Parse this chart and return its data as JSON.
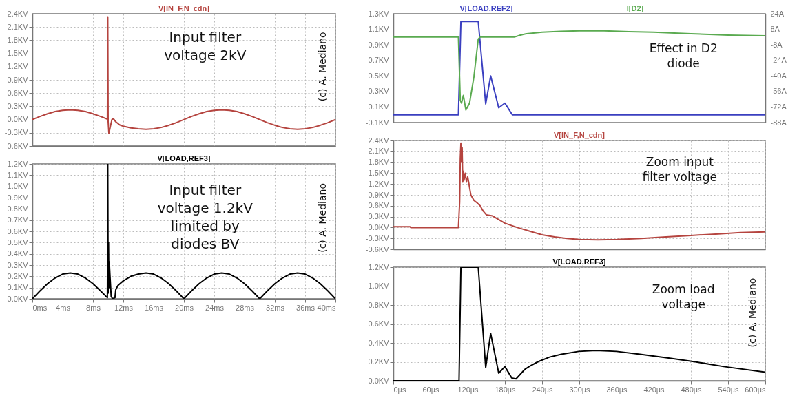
{
  "chart_data": [
    {
      "type": "line",
      "annotations": [
        "Input filter voltage 2kV",
        "(c) A. Mediano"
      ],
      "grid": true,
      "tick_labels": "y",
      "xlim": [
        0,
        40
      ],
      "xticks": [
        0,
        4,
        8,
        12,
        16,
        20,
        24,
        28,
        32,
        36,
        40
      ],
      "ylim": [
        -0.6,
        2.4
      ],
      "yticks": [
        {
          "value": -0.6,
          "label": "-0.6KV"
        },
        {
          "value": -0.3,
          "label": "-0.3KV"
        },
        {
          "value": 0,
          "label": "0.0KV"
        },
        {
          "value": 0.3,
          "label": "0.3KV"
        },
        {
          "value": 0.6,
          "label": "0.6KV"
        },
        {
          "value": 0.9,
          "label": "0.9KV"
        },
        {
          "value": 1.2,
          "label": "1.2KV"
        },
        {
          "value": 1.5,
          "label": "1.5KV"
        },
        {
          "value": 1.8,
          "label": "1.8KV"
        },
        {
          "value": 2.1,
          "label": "2.1KV"
        },
        {
          "value": 2.4,
          "label": "2.4KV"
        }
      ],
      "series": [
        {
          "name": "V[IN_F,N_cdn]",
          "color": "#b5443f",
          "x": [
            0,
            1,
            2,
            3,
            4,
            5,
            6,
            7,
            8,
            9,
            9.9,
            9.95,
            10,
            10.1,
            10.3,
            10.5,
            10.7,
            11,
            11.5,
            12,
            13,
            14,
            15,
            16,
            17,
            18,
            19,
            20,
            21,
            22,
            23,
            24,
            25,
            26,
            27,
            28,
            29,
            30,
            31,
            32,
            33,
            34,
            35,
            36,
            37,
            38,
            39,
            40
          ],
          "values": [
            0,
            0.07,
            0.13,
            0.18,
            0.21,
            0.22,
            0.21,
            0.18,
            0.13,
            0.07,
            0.01,
            2.33,
            -0.05,
            -0.32,
            -0.15,
            0,
            0.02,
            -0.05,
            -0.12,
            -0.15,
            -0.19,
            -0.21,
            -0.22,
            -0.21,
            -0.18,
            -0.13,
            -0.07,
            0,
            0.07,
            0.13,
            0.18,
            0.21,
            0.22,
            0.21,
            0.18,
            0.13,
            0.07,
            0,
            -0.07,
            -0.13,
            -0.18,
            -0.21,
            -0.22,
            -0.21,
            -0.18,
            -0.13,
            -0.07,
            0
          ]
        }
      ]
    },
    {
      "type": "line",
      "annotations": [
        "Input filter voltage 1.2kV limited by diodes BV",
        "(c) A. Mediano"
      ],
      "grid": true,
      "xlim": [
        0,
        40
      ],
      "xticks": [
        {
          "value": 0,
          "label": "0ms"
        },
        {
          "value": 4,
          "label": "4ms"
        },
        {
          "value": 8,
          "label": "8ms"
        },
        {
          "value": 12,
          "label": "12ms"
        },
        {
          "value": 16,
          "label": "16ms"
        },
        {
          "value": 20,
          "label": "20ms"
        },
        {
          "value": 24,
          "label": "24ms"
        },
        {
          "value": 28,
          "label": "28ms"
        },
        {
          "value": 32,
          "label": "32ms"
        },
        {
          "value": 36,
          "label": "36ms"
        },
        {
          "value": 40,
          "label": "40ms"
        }
      ],
      "ylim": [
        0,
        1.2
      ],
      "yticks": [
        {
          "value": 0,
          "label": "0.0KV"
        },
        {
          "value": 0.1,
          "label": "0.1KV"
        },
        {
          "value": 0.2,
          "label": "0.2KV"
        },
        {
          "value": 0.3,
          "label": "0.3KV"
        },
        {
          "value": 0.4,
          "label": "0.4KV"
        },
        {
          "value": 0.5,
          "label": "0.5KV"
        },
        {
          "value": 0.6,
          "label": "0.6KV"
        },
        {
          "value": 0.7,
          "label": "0.7KV"
        },
        {
          "value": 0.8,
          "label": "0.8KV"
        },
        {
          "value": 0.9,
          "label": "0.9KV"
        },
        {
          "value": 1,
          "label": "1.0KV"
        },
        {
          "value": 1.1,
          "label": "1.1KV"
        },
        {
          "value": 1.2,
          "label": "1.2KV"
        }
      ],
      "series": [
        {
          "name": "V[LOAD,REF3]",
          "color": "#000000",
          "x": [
            0,
            1,
            2,
            3,
            4,
            5,
            6,
            7,
            8,
            9,
            9.9,
            9.95,
            10,
            10.05,
            10.1,
            10.15,
            10.25,
            10.4,
            10.6,
            10.9,
            11,
            11.3,
            12,
            13,
            14,
            15,
            16,
            17,
            18,
            19,
            20,
            21,
            22,
            23,
            24,
            25,
            26,
            27,
            28,
            29,
            30,
            31,
            32,
            33,
            34,
            35,
            36,
            37,
            38,
            39,
            40
          ],
          "values": [
            0,
            0.07,
            0.135,
            0.185,
            0.22,
            0.23,
            0.22,
            0.185,
            0.135,
            0.07,
            0.01,
            1.2,
            0.05,
            0.5,
            0.1,
            0.33,
            0.2,
            0.02,
            0,
            0.01,
            0.08,
            0.12,
            0.16,
            0.2,
            0.22,
            0.23,
            0.22,
            0.185,
            0.135,
            0.07,
            0,
            0.07,
            0.135,
            0.185,
            0.22,
            0.23,
            0.22,
            0.185,
            0.135,
            0.07,
            0,
            0.07,
            0.135,
            0.185,
            0.22,
            0.23,
            0.22,
            0.185,
            0.135,
            0.07,
            0
          ]
        }
      ]
    },
    {
      "type": "line",
      "annotations": [
        "Effect in D2 diode"
      ],
      "grid": true,
      "tick_labels": "y",
      "xlim": [
        0,
        600
      ],
      "xticks": [
        0,
        60,
        120,
        180,
        240,
        300,
        360,
        420,
        480,
        540,
        600
      ],
      "ylim": [
        -0.1,
        1.3
      ],
      "yticks": [
        {
          "value": -0.1,
          "label": "-0.1KV"
        },
        {
          "value": 0.1,
          "label": "0.1KV"
        },
        {
          "value": 0.3,
          "label": "0.3KV"
        },
        {
          "value": 0.5,
          "label": "0.5KV"
        },
        {
          "value": 0.7,
          "label": "0.7KV"
        },
        {
          "value": 0.9,
          "label": "0.9KV"
        },
        {
          "value": 1.1,
          "label": "1.1KV"
        },
        {
          "value": 1.3,
          "label": "1.3KV"
        }
      ],
      "y2lim": [
        -88,
        24
      ],
      "y2ticks": [
        {
          "value": -88,
          "label": "-88A"
        },
        {
          "value": -72,
          "label": "-72A"
        },
        {
          "value": -56,
          "label": "-56A"
        },
        {
          "value": -40,
          "label": "-40A"
        },
        {
          "value": -24,
          "label": "-24A"
        },
        {
          "value": -8,
          "label": "-8A"
        },
        {
          "value": 8,
          "label": "8A"
        },
        {
          "value": 24,
          "label": "24A"
        }
      ],
      "series": [
        {
          "name": "V[LOAD,REF2]",
          "color": "#3a3fc0",
          "x": [
            0,
            105,
            109,
            137,
            149,
            157,
            170,
            180,
            192,
            600
          ],
          "values": [
            0,
            0,
            1.2,
            1.2,
            0.14,
            0.5,
            0.09,
            0.15,
            0,
            0
          ]
        },
        {
          "name": "I[D2]",
          "color": "#5aaa50",
          "axis": "y2",
          "x": [
            0,
            105,
            108,
            110,
            113,
            117,
            123,
            130,
            137,
            140,
            195,
            205,
            215,
            240,
            270,
            300,
            340,
            380,
            420,
            480,
            540,
            600
          ],
          "values": [
            0,
            0,
            -65,
            -68,
            -60,
            -75,
            -68,
            -41,
            -2,
            0,
            0,
            2,
            3.5,
            5,
            6,
            6.5,
            6.5,
            5.5,
            5,
            3.5,
            2,
            1.3
          ]
        }
      ]
    },
    {
      "type": "line",
      "annotations": [
        "Zoom input filter voltage"
      ],
      "grid": true,
      "tick_labels": "y",
      "xlim": [
        0,
        600
      ],
      "xticks": [
        0,
        60,
        120,
        180,
        240,
        300,
        360,
        420,
        480,
        540,
        600
      ],
      "ylim": [
        -0.6,
        2.4
      ],
      "yticks": [
        {
          "value": -0.6,
          "label": "-0.6KV"
        },
        {
          "value": -0.3,
          "label": "-0.3KV"
        },
        {
          "value": 0,
          "label": "0.0KV"
        },
        {
          "value": 0.3,
          "label": "0.3KV"
        },
        {
          "value": 0.6,
          "label": "0.6KV"
        },
        {
          "value": 0.9,
          "label": "0.9KV"
        },
        {
          "value": 1.2,
          "label": "1.2KV"
        },
        {
          "value": 1.5,
          "label": "1.5KV"
        },
        {
          "value": 1.8,
          "label": "1.8KV"
        },
        {
          "value": 2.1,
          "label": "2.1KV"
        },
        {
          "value": 2.4,
          "label": "2.4KV"
        }
      ],
      "series": [
        {
          "name": "V[IN_F,N_cdn]",
          "color": "#b5443f",
          "x": [
            0,
            27,
            28,
            105,
            107,
            108,
            109,
            110,
            111,
            112,
            113,
            114,
            116,
            118,
            120,
            122,
            125,
            130,
            135,
            140,
            145,
            150,
            160,
            170,
            180,
            200,
            220,
            240,
            260,
            280,
            300,
            330,
            360,
            400,
            440,
            480,
            520,
            560,
            600
          ],
          "values": [
            0.02,
            0.02,
            0,
            0,
            0.7,
            1.9,
            2.33,
            1.8,
            2.2,
            1.25,
            1.55,
            1.3,
            1.5,
            1.25,
            1.4,
            1.2,
            0.9,
            0.75,
            0.68,
            0.6,
            0.45,
            0.35,
            0.32,
            0.22,
            0.12,
            0,
            -0.1,
            -0.2,
            -0.26,
            -0.3,
            -0.33,
            -0.34,
            -0.33,
            -0.3,
            -0.26,
            -0.22,
            -0.18,
            -0.14,
            -0.12
          ]
        }
      ]
    },
    {
      "type": "line",
      "annotations": [
        "Zoom load voltage",
        "(c) A. Mediano"
      ],
      "grid": true,
      "xlim": [
        0,
        600
      ],
      "xticks": [
        {
          "value": 0,
          "label": "0µs"
        },
        {
          "value": 60,
          "label": "60µs"
        },
        {
          "value": 120,
          "label": "120µs"
        },
        {
          "value": 180,
          "label": "180µs"
        },
        {
          "value": 240,
          "label": "240µs"
        },
        {
          "value": 300,
          "label": "300µs"
        },
        {
          "value": 360,
          "label": "360µs"
        },
        {
          "value": 420,
          "label": "420µs"
        },
        {
          "value": 480,
          "label": "480µs"
        },
        {
          "value": 540,
          "label": "540µs"
        },
        {
          "value": 600,
          "label": "600µs"
        }
      ],
      "ylim": [
        0,
        1.2
      ],
      "yticks": [
        {
          "value": 0,
          "label": "0.0KV"
        },
        {
          "value": 0.2,
          "label": "0.2KV"
        },
        {
          "value": 0.4,
          "label": "0.4KV"
        },
        {
          "value": 0.6,
          "label": "0.6KV"
        },
        {
          "value": 0.8,
          "label": "0.8KV"
        },
        {
          "value": 1,
          "label": "1.0KV"
        },
        {
          "value": 1.2,
          "label": "1.2KV"
        }
      ],
      "series": [
        {
          "name": "V[LOAD,REF3]",
          "color": "#000000",
          "x": [
            0,
            106,
            109,
            137,
            149,
            157,
            170,
            180,
            191,
            198,
            212,
            219,
            233,
            252,
            271,
            299,
            327,
            360,
            398,
            444,
            487,
            533,
            600
          ],
          "values": [
            0,
            0,
            1.2,
            1.2,
            0.14,
            0.5,
            0.08,
            0.15,
            0.03,
            0.02,
            0.12,
            0.15,
            0.2,
            0.25,
            0.28,
            0.31,
            0.32,
            0.31,
            0.28,
            0.24,
            0.2,
            0.15,
            0.09
          ]
        }
      ]
    }
  ]
}
